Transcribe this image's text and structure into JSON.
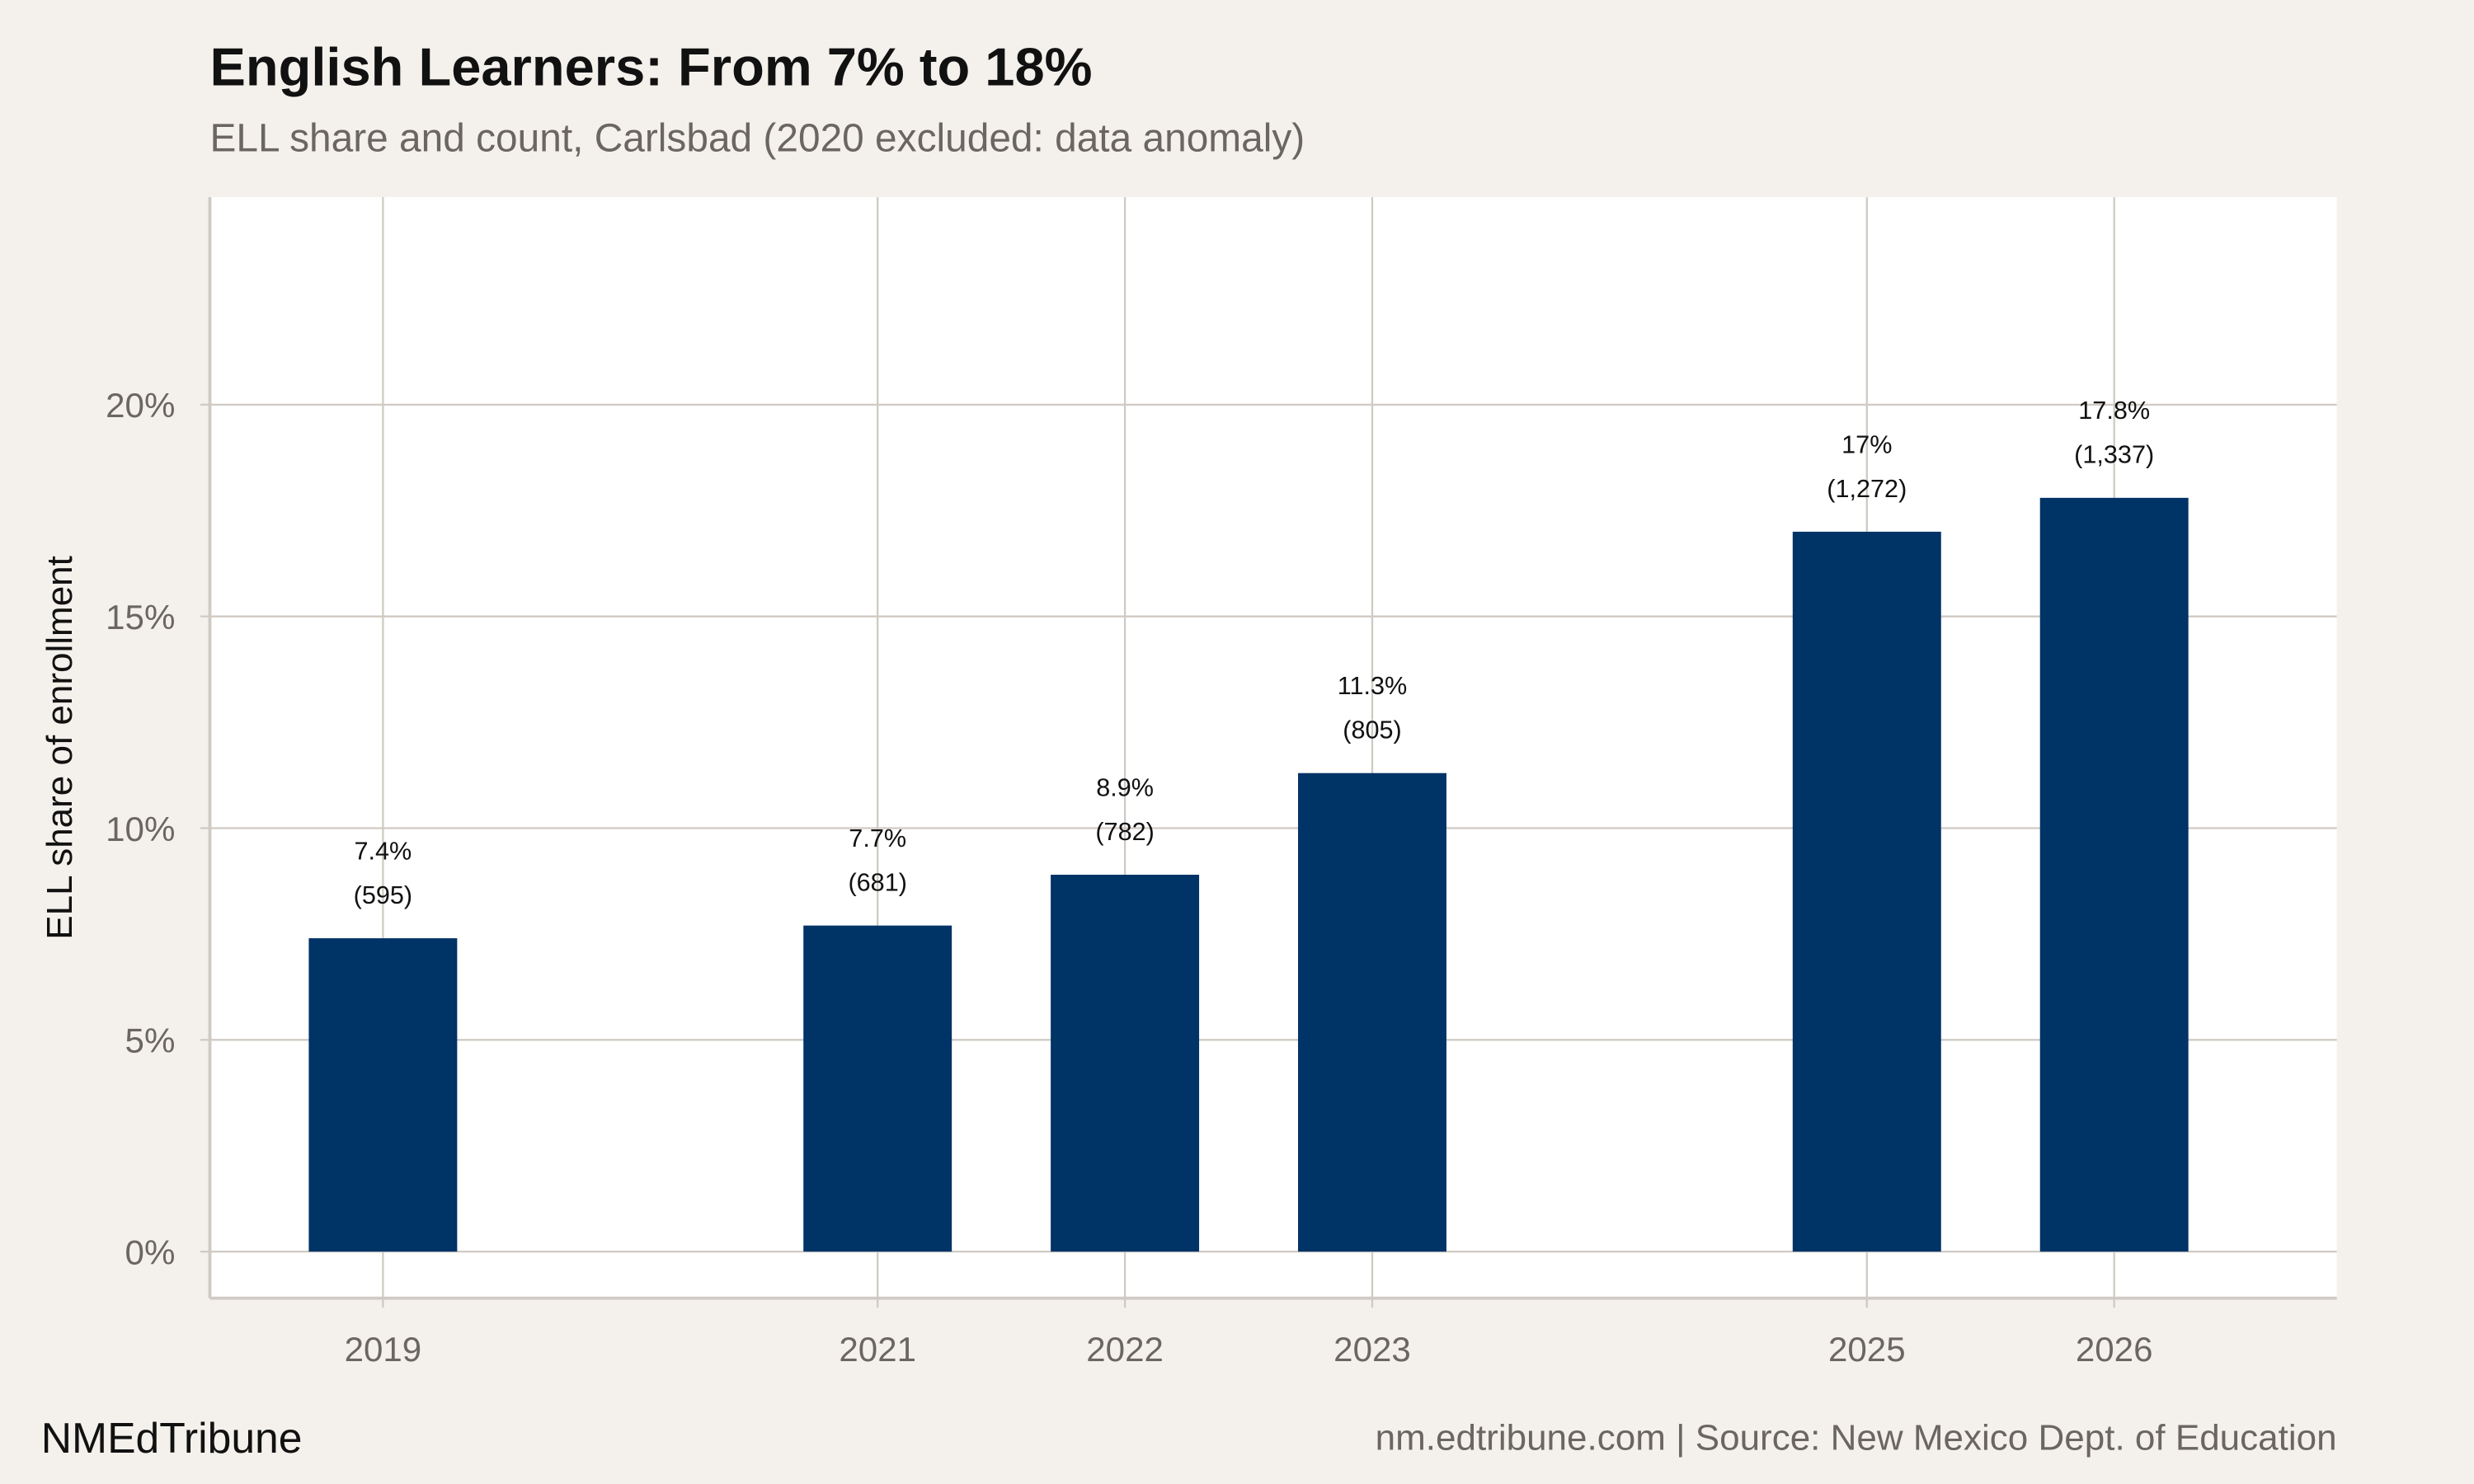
{
  "title": "English Learners: From 7% to 18%",
  "subtitle": "ELL share and count, Carlsbad (2020 excluded: data anomaly)",
  "footer": {
    "brand": "NMEdTribune",
    "source": "nm.edtribune.com | Source: New Mexico Dept. of Education"
  },
  "colors": {
    "bar": "#003366",
    "background": "#f4f1ec",
    "panel": "#ffffff",
    "grid": "#cfcac3"
  },
  "chart_data": {
    "type": "bar",
    "title": "English Learners: From 7% to 18%",
    "ylabel": "ELL share of enrollment",
    "xlabel": "",
    "categories": [
      "2019",
      "2021",
      "2022",
      "2023",
      "2025",
      "2026"
    ],
    "x": [
      2019,
      2021,
      2022,
      2023,
      2025,
      2026
    ],
    "values": [
      7.4,
      7.7,
      8.9,
      11.3,
      17.0,
      17.8
    ],
    "counts": [
      595,
      681,
      782,
      805,
      1272,
      1337
    ],
    "value_labels": [
      "7.4%",
      "7.7%",
      "8.9%",
      "11.3%",
      "17%",
      "17.8%"
    ],
    "count_labels": [
      "(595)",
      "(681)",
      "(782)",
      "(805)",
      "(1,272)",
      "(1,337)"
    ],
    "yticks": [
      0,
      5,
      10,
      15,
      20
    ],
    "ytick_labels": [
      "0%",
      "5%",
      "10%",
      "15%",
      "20%"
    ],
    "ylim": [
      -1.1,
      24.9
    ],
    "xlim": [
      2018.3,
      2026.9
    ],
    "grid": true,
    "legend": "none"
  }
}
